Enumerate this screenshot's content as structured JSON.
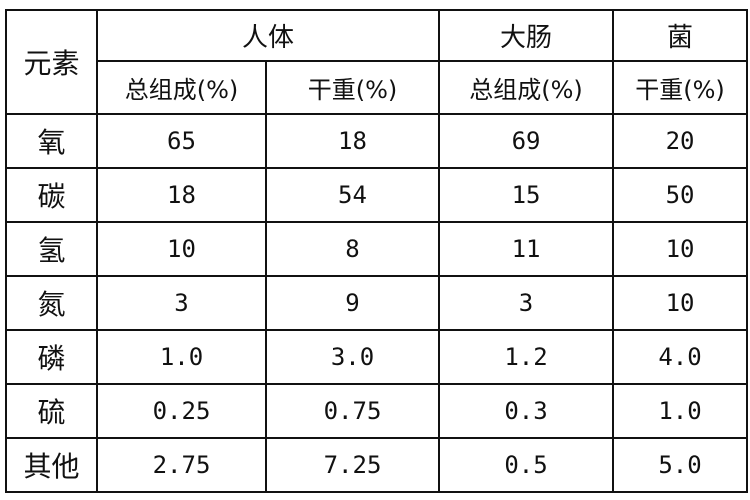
{
  "table": {
    "corner_header": "元素",
    "group_headers": [
      "人体",
      "大肠",
      "菌"
    ],
    "sub_headers": [
      "总组成(%)",
      "干重(%)",
      "总组成(%)",
      "干重(%)"
    ],
    "rows": [
      {
        "element": "氧",
        "values": [
          "65",
          "18",
          "69",
          "20"
        ]
      },
      {
        "element": "碳",
        "values": [
          "18",
          "54",
          "15",
          "50"
        ]
      },
      {
        "element": "氢",
        "values": [
          "10",
          "8",
          "11",
          "10"
        ]
      },
      {
        "element": "氮",
        "values": [
          "3",
          "9",
          "3",
          "10"
        ]
      },
      {
        "element": "磷",
        "values": [
          "1.0",
          "3.0",
          "1.2",
          "4.0"
        ]
      },
      {
        "element": "硫",
        "values": [
          "0.25",
          "0.75",
          "0.3",
          "1.0"
        ]
      },
      {
        "element": "其他",
        "values": [
          "2.75",
          "7.25",
          "0.5",
          "5.0"
        ]
      }
    ]
  }
}
